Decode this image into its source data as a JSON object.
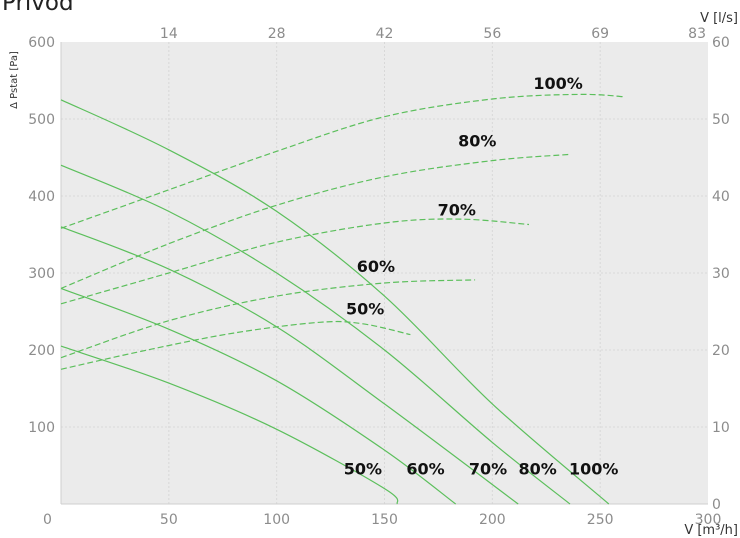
{
  "page_title": "Přívod",
  "chart_data": {
    "type": "line",
    "title": "Přívod",
    "xlabel": "V [m³/h]",
    "ylabel": "Δ Pstat [Pa]",
    "x2label": "V [l/s]",
    "xlim": [
      0,
      300
    ],
    "ylim": [
      0,
      600
    ],
    "y2lim": [
      0,
      60
    ],
    "x_ticks": [
      0,
      50,
      100,
      150,
      200,
      250,
      300
    ],
    "y_ticks": [
      100,
      200,
      300,
      400,
      500,
      600
    ],
    "y2_ticks": [
      0,
      10,
      20,
      30,
      40,
      50,
      60
    ],
    "x2_ticks": [
      {
        "label": "14",
        "pos": 50
      },
      {
        "label": "28",
        "pos": 100
      },
      {
        "label": "42",
        "pos": 150
      },
      {
        "label": "56",
        "pos": 200
      },
      {
        "label": "69",
        "pos": 250
      },
      {
        "label": "83",
        "pos": 300
      }
    ],
    "grid": true,
    "colors": {
      "curve": "#5cbf5c",
      "background": "#ebebeb",
      "grid": "#d8d8d8"
    },
    "fan_curves": [
      {
        "name": "50%",
        "points": [
          [
            0,
            205
          ],
          [
            50,
            157
          ],
          [
            100,
            97
          ],
          [
            150,
            20
          ],
          [
            156,
            0
          ]
        ]
      },
      {
        "name": "60%",
        "points": [
          [
            0,
            280
          ],
          [
            50,
            227
          ],
          [
            100,
            160
          ],
          [
            150,
            70
          ],
          [
            183,
            0
          ]
        ]
      },
      {
        "name": "70%",
        "points": [
          [
            0,
            360
          ],
          [
            50,
            305
          ],
          [
            100,
            230
          ],
          [
            150,
            130
          ],
          [
            212,
            0
          ]
        ]
      },
      {
        "name": "80%",
        "points": [
          [
            0,
            440
          ],
          [
            50,
            380
          ],
          [
            100,
            300
          ],
          [
            150,
            200
          ],
          [
            200,
            80
          ],
          [
            236,
            0
          ]
        ]
      },
      {
        "name": "100%",
        "points": [
          [
            0,
            525
          ],
          [
            50,
            460
          ],
          [
            100,
            380
          ],
          [
            150,
            270
          ],
          [
            200,
            130
          ],
          [
            254,
            0
          ]
        ]
      }
    ],
    "power_curves": [
      {
        "name": "50%",
        "points": [
          [
            0,
            175
          ],
          [
            40,
            200
          ],
          [
            80,
            222
          ],
          [
            120,
            236
          ],
          [
            140,
            234
          ],
          [
            162,
            220
          ]
        ]
      },
      {
        "name": "60%",
        "points": [
          [
            0,
            190
          ],
          [
            50,
            238
          ],
          [
            100,
            270
          ],
          [
            150,
            287
          ],
          [
            192,
            291
          ]
        ]
      },
      {
        "name": "70%",
        "points": [
          [
            0,
            260
          ],
          [
            50,
            300
          ],
          [
            100,
            340
          ],
          [
            150,
            365
          ],
          [
            185,
            370
          ],
          [
            217,
            363
          ]
        ]
      },
      {
        "name": "80%",
        "points": [
          [
            0,
            280
          ],
          [
            50,
            338
          ],
          [
            100,
            388
          ],
          [
            150,
            425
          ],
          [
            200,
            446
          ],
          [
            236,
            454
          ]
        ]
      },
      {
        "name": "100%",
        "points": [
          [
            0,
            358
          ],
          [
            50,
            408
          ],
          [
            100,
            458
          ],
          [
            150,
            503
          ],
          [
            200,
            526
          ],
          [
            240,
            532
          ],
          [
            261,
            529
          ]
        ]
      }
    ],
    "labels_bottom": [
      {
        "text": "50%",
        "x": 140
      },
      {
        "text": "60%",
        "x": 169
      },
      {
        "text": "70%",
        "x": 198
      },
      {
        "text": "80%",
        "x": 221
      },
      {
        "text": "100%",
        "x": 247
      }
    ]
  }
}
